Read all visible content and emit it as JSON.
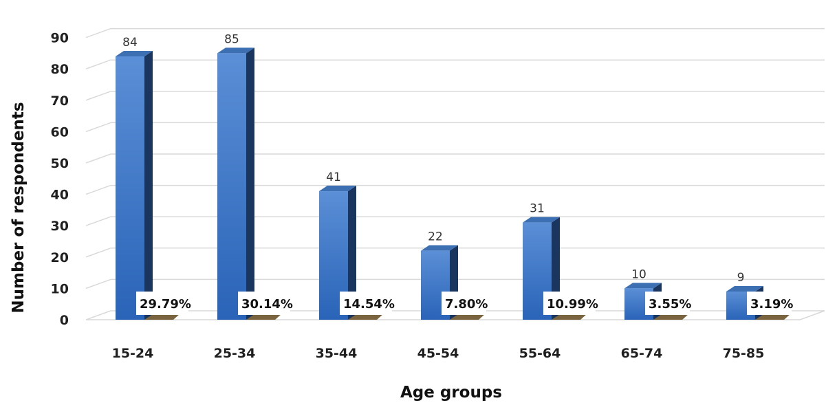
{
  "chart_data": {
    "type": "bar",
    "title": "",
    "xlabel": "Age groups",
    "ylabel": "Number of respondents",
    "categories": [
      "15-24",
      "25-34",
      "35-44",
      "45-54",
      "55-64",
      "65-74",
      "75-85"
    ],
    "values": [
      84,
      85,
      41,
      22,
      31,
      10,
      9
    ],
    "percent_labels": [
      "29.79%",
      "30.14%",
      "14.54%",
      "7.80%",
      "10.99%",
      "3.55%",
      "3.19%"
    ],
    "ylim": [
      0,
      90
    ],
    "yticks": [
      "0",
      "10",
      "20",
      "30",
      "40",
      "50",
      "60",
      "70",
      "80",
      "90"
    ],
    "grid": true,
    "legend": "none",
    "style": "3d-column"
  },
  "colors": {
    "bar_front_top": "#5b8fd6",
    "bar_front_bottom": "#2a64b8",
    "bar_side": "#1b365e",
    "bar_top": "#3d6fb3",
    "floor_shadow": "#7a6440",
    "grid": "#d9d9d9"
  }
}
